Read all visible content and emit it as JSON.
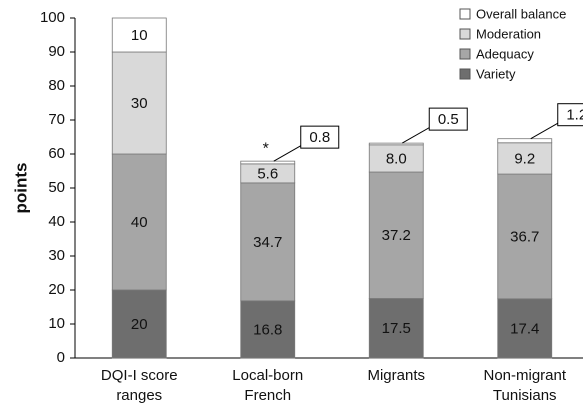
{
  "chart_data": {
    "type": "stacked_bar",
    "categories": [
      "DQI-I score ranges",
      "Local-born French",
      "Migrants",
      "Non-migrant Tunisians"
    ],
    "series": [
      {
        "name": "Variety",
        "color": "#6e6e6e",
        "values": [
          20,
          16.8,
          17.5,
          17.4
        ]
      },
      {
        "name": "Adequacy",
        "color": "#a6a6a6",
        "values": [
          40,
          34.7,
          37.2,
          36.7
        ]
      },
      {
        "name": "Moderation",
        "color": "#d9d9d9",
        "values": [
          30,
          5.6,
          8.0,
          9.2
        ],
        "value_labels": [
          "30",
          "5.6",
          "8.0",
          "9.2"
        ]
      },
      {
        "name": "Overall balance",
        "color": "#ffffff",
        "values": [
          10,
          0.8,
          0.5,
          1.2
        ]
      }
    ],
    "ylabel": "points",
    "annotation": "*",
    "ylim": [
      0,
      100
    ],
    "yticks": [
      0,
      10,
      20,
      30,
      40,
      50,
      60,
      70,
      80,
      90,
      100
    ],
    "legend": "upper right"
  }
}
